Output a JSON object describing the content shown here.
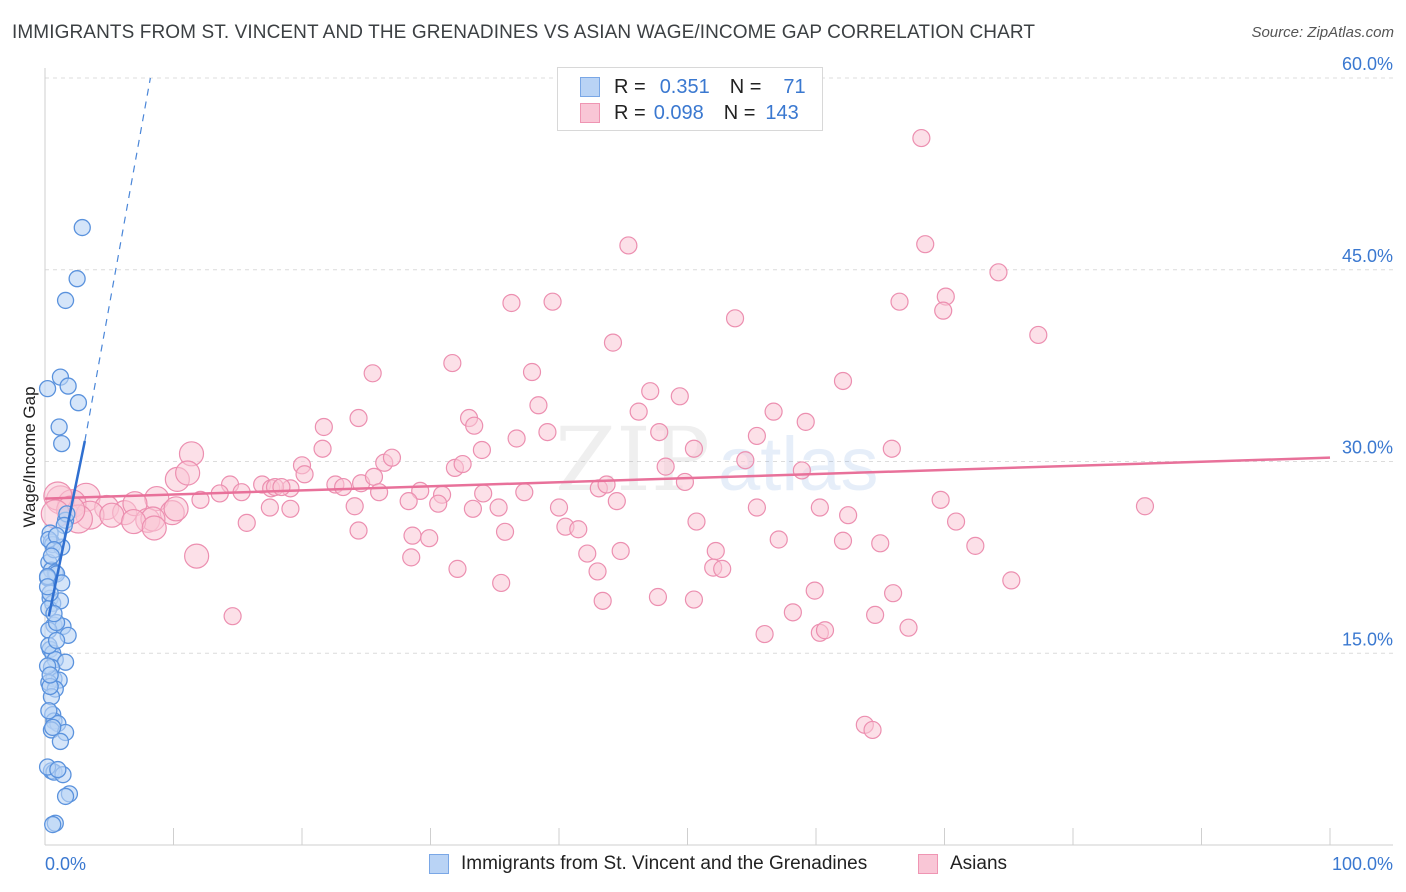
{
  "header": {
    "title": "IMMIGRANTS FROM ST. VINCENT AND THE GRENADINES VS ASIAN WAGE/INCOME GAP CORRELATION CHART",
    "source": "Source: ZipAtlas.com"
  },
  "legend": {
    "r_label": "R =",
    "n_label": "N =",
    "rows": [
      {
        "r": "0.351",
        "n": "71",
        "fill": "#b9d3f5",
        "stroke": "#7aa7e6"
      },
      {
        "r": "0.098",
        "n": "143",
        "fill": "#f9c6d6",
        "stroke": "#ef95b3"
      }
    ]
  },
  "watermark": {
    "zip": "ZIP",
    "atlas": "atlas"
  },
  "chart_data": {
    "type": "scatter",
    "title": "IMMIGRANTS FROM ST. VINCENT AND THE GRENADINES VS ASIAN WAGE/INCOME GAP CORRELATION CHART",
    "xlabel": "",
    "ylabel": "Wage/Income Gap",
    "xlim": [
      0,
      100
    ],
    "ylim": [
      0,
      60
    ],
    "x_tick_labels": [
      "0.0%",
      "100.0%"
    ],
    "y_ticks": [
      15,
      30,
      45,
      60
    ],
    "y_tick_labels": [
      "15.0%",
      "30.0%",
      "45.0%",
      "60.0%"
    ],
    "grid": true,
    "series": [
      {
        "name": "Immigrants from St. Vincent and the Grenadines",
        "color": "#4a86d8",
        "fill": "#b9d3f5",
        "points": [
          [
            0.2,
            35.7
          ],
          [
            1.2,
            36.6
          ],
          [
            1.8,
            35.9
          ],
          [
            2.6,
            34.6
          ],
          [
            1.1,
            32.7
          ],
          [
            1.3,
            31.4
          ],
          [
            2.5,
            44.3
          ],
          [
            1.6,
            42.6
          ],
          [
            2.9,
            48.3
          ],
          [
            1.6,
            25.4
          ],
          [
            1.7,
            25.9
          ],
          [
            1.5,
            25.0
          ],
          [
            0.4,
            24.4
          ],
          [
            0.5,
            23.7
          ],
          [
            0.6,
            23.5
          ],
          [
            1.3,
            23.3
          ],
          [
            0.3,
            22.1
          ],
          [
            0.5,
            21.5
          ],
          [
            0.8,
            21.3
          ],
          [
            0.9,
            21.2
          ],
          [
            0.2,
            20.9
          ],
          [
            0.4,
            19.3
          ],
          [
            0.6,
            18.9
          ],
          [
            0.3,
            18.5
          ],
          [
            1.2,
            19.1
          ],
          [
            0.7,
            17.2
          ],
          [
            1.4,
            17.1
          ],
          [
            0.3,
            16.8
          ],
          [
            1.8,
            16.4
          ],
          [
            0.4,
            15.3
          ],
          [
            0.6,
            15.0
          ],
          [
            0.8,
            14.5
          ],
          [
            1.6,
            14.3
          ],
          [
            0.5,
            13.9
          ],
          [
            0.7,
            13.0
          ],
          [
            1.1,
            12.9
          ],
          [
            0.3,
            12.7
          ],
          [
            0.8,
            12.2
          ],
          [
            0.5,
            11.6
          ],
          [
            0.6,
            10.2
          ],
          [
            0.7,
            9.7
          ],
          [
            1.0,
            9.5
          ],
          [
            0.5,
            9.0
          ],
          [
            1.6,
            8.8
          ],
          [
            1.2,
            8.1
          ],
          [
            0.5,
            5.8
          ],
          [
            0.7,
            5.7
          ],
          [
            1.4,
            5.5
          ],
          [
            1.9,
            4.0
          ],
          [
            1.6,
            3.8
          ],
          [
            0.8,
            1.7
          ],
          [
            0.6,
            1.6
          ],
          [
            0.3,
            23.9
          ],
          [
            0.9,
            24.2
          ],
          [
            0.2,
            21.0
          ],
          [
            0.4,
            19.7
          ],
          [
            0.9,
            17.4
          ],
          [
            0.3,
            15.6
          ],
          [
            0.2,
            14.0
          ],
          [
            0.4,
            12.4
          ],
          [
            0.3,
            10.5
          ],
          [
            0.6,
            9.2
          ],
          [
            0.2,
            6.1
          ],
          [
            1.0,
            5.9
          ],
          [
            0.7,
            23.1
          ],
          [
            0.5,
            22.6
          ],
          [
            0.2,
            20.2
          ],
          [
            0.7,
            18.1
          ],
          [
            0.9,
            16.0
          ],
          [
            0.4,
            13.3
          ],
          [
            1.3,
            20.5
          ]
        ],
        "trend": {
          "x": [
            0.3,
            3.1
          ],
          "y": [
            17.9,
            31.6
          ],
          "extended_x": [
            3.1,
            8.2
          ],
          "extended_y": [
            31.6,
            60.0
          ]
        }
      },
      {
        "name": "Asians",
        "color": "#e8719a",
        "fill": "#f9c6d6",
        "points": [
          [
            68.2,
            55.3
          ],
          [
            45.4,
            46.9
          ],
          [
            68.5,
            47.0
          ],
          [
            74.2,
            44.8
          ],
          [
            36.3,
            42.4
          ],
          [
            39.5,
            42.5
          ],
          [
            53.7,
            41.2
          ],
          [
            66.5,
            42.5
          ],
          [
            70.1,
            42.9
          ],
          [
            69.9,
            41.8
          ],
          [
            44.2,
            39.3
          ],
          [
            77.3,
            39.9
          ],
          [
            25.5,
            36.9
          ],
          [
            31.7,
            37.7
          ],
          [
            37.9,
            37.0
          ],
          [
            47.1,
            35.5
          ],
          [
            49.4,
            35.1
          ],
          [
            62.1,
            36.3
          ],
          [
            38.4,
            34.4
          ],
          [
            46.2,
            33.9
          ],
          [
            56.7,
            33.9
          ],
          [
            24.4,
            33.4
          ],
          [
            33.0,
            33.4
          ],
          [
            33.4,
            32.8
          ],
          [
            39.1,
            32.3
          ],
          [
            47.8,
            32.3
          ],
          [
            59.2,
            33.1
          ],
          [
            55.4,
            32.0
          ],
          [
            21.7,
            32.7
          ],
          [
            36.7,
            31.8
          ],
          [
            11.4,
            30.6
          ],
          [
            21.6,
            31.0
          ],
          [
            34.0,
            30.9
          ],
          [
            50.5,
            31.0
          ],
          [
            65.9,
            31.0
          ],
          [
            20.0,
            29.7
          ],
          [
            26.4,
            29.9
          ],
          [
            27.0,
            30.3
          ],
          [
            31.9,
            29.5
          ],
          [
            32.5,
            29.8
          ],
          [
            48.3,
            29.6
          ],
          [
            54.5,
            30.1
          ],
          [
            10.3,
            28.6
          ],
          [
            11.1,
            29.1
          ],
          [
            14.4,
            28.2
          ],
          [
            15.3,
            27.6
          ],
          [
            19.1,
            27.9
          ],
          [
            20.2,
            29.0
          ],
          [
            22.6,
            28.2
          ],
          [
            23.2,
            28.0
          ],
          [
            24.6,
            28.3
          ],
          [
            25.6,
            28.8
          ],
          [
            26.0,
            27.6
          ],
          [
            29.2,
            27.7
          ],
          [
            30.9,
            27.4
          ],
          [
            34.1,
            27.5
          ],
          [
            37.3,
            27.6
          ],
          [
            43.1,
            27.9
          ],
          [
            43.7,
            28.2
          ],
          [
            49.8,
            28.4
          ],
          [
            58.9,
            29.3
          ],
          [
            3.2,
            27.2
          ],
          [
            4.8,
            26.4
          ],
          [
            6.2,
            26.0
          ],
          [
            8.7,
            27.1
          ],
          [
            9.9,
            26.0
          ],
          [
            12.1,
            27.0
          ],
          [
            13.6,
            27.5
          ],
          [
            16.9,
            28.2
          ],
          [
            17.6,
            27.9
          ],
          [
            17.9,
            28.0
          ],
          [
            18.4,
            28.0
          ],
          [
            1.2,
            27.0
          ],
          [
            2.1,
            26.7
          ],
          [
            3.5,
            25.8
          ],
          [
            5.2,
            25.8
          ],
          [
            7.0,
            26.7
          ],
          [
            8.0,
            25.4
          ],
          [
            8.4,
            25.5
          ],
          [
            10.2,
            26.3
          ],
          [
            17.5,
            26.4
          ],
          [
            19.1,
            26.3
          ],
          [
            24.1,
            26.5
          ],
          [
            28.3,
            26.9
          ],
          [
            30.6,
            26.7
          ],
          [
            33.3,
            26.3
          ],
          [
            35.3,
            26.4
          ],
          [
            40.0,
            26.4
          ],
          [
            44.5,
            26.9
          ],
          [
            50.7,
            25.3
          ],
          [
            55.4,
            26.4
          ],
          [
            60.3,
            26.4
          ],
          [
            62.5,
            25.8
          ],
          [
            69.7,
            27.0
          ],
          [
            70.9,
            25.3
          ],
          [
            85.6,
            26.5
          ],
          [
            2.6,
            25.5
          ],
          [
            6.9,
            25.3
          ],
          [
            8.5,
            24.8
          ],
          [
            15.7,
            25.2
          ],
          [
            24.4,
            24.6
          ],
          [
            35.8,
            24.5
          ],
          [
            40.5,
            24.9
          ],
          [
            41.5,
            24.7
          ],
          [
            28.6,
            24.2
          ],
          [
            29.9,
            24.0
          ],
          [
            11.8,
            22.6
          ],
          [
            28.5,
            22.5
          ],
          [
            42.2,
            22.8
          ],
          [
            44.8,
            23.0
          ],
          [
            52.2,
            23.0
          ],
          [
            57.1,
            23.9
          ],
          [
            62.1,
            23.8
          ],
          [
            65.0,
            23.6
          ],
          [
            72.4,
            23.4
          ],
          [
            32.1,
            21.6
          ],
          [
            43.0,
            21.4
          ],
          [
            52.0,
            21.7
          ],
          [
            52.7,
            21.6
          ],
          [
            35.5,
            20.5
          ],
          [
            47.7,
            19.4
          ],
          [
            59.9,
            19.9
          ],
          [
            75.2,
            20.7
          ],
          [
            43.4,
            19.1
          ],
          [
            50.5,
            19.2
          ],
          [
            66.0,
            19.7
          ],
          [
            58.2,
            18.2
          ],
          [
            64.6,
            18.0
          ],
          [
            14.6,
            17.9
          ],
          [
            56.0,
            16.5
          ],
          [
            60.3,
            16.6
          ],
          [
            60.7,
            16.8
          ],
          [
            67.2,
            17.0
          ],
          [
            63.8,
            9.4
          ],
          [
            64.4,
            9.0
          ],
          [
            1.0,
            27.3
          ],
          [
            2.0,
            26.2
          ],
          [
            0.8,
            25.9
          ]
        ],
        "trend": {
          "x": [
            0.0,
            100.0
          ],
          "y": [
            27.1,
            30.3
          ]
        }
      }
    ]
  },
  "bottom_legend": {
    "series_1": "Immigrants from St. Vincent and the Grenadines",
    "series_2": "Asians"
  }
}
